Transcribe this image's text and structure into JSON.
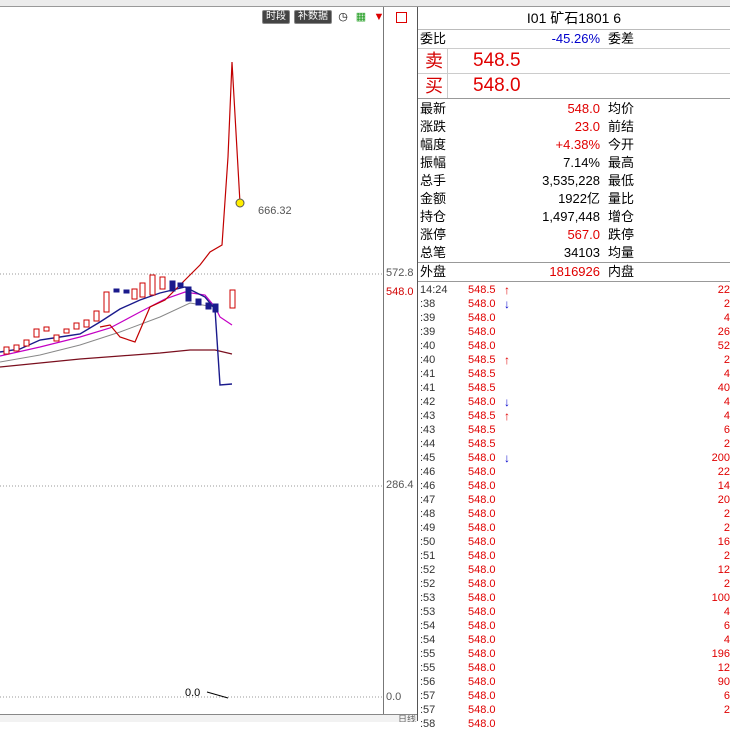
{
  "toolbar": {
    "btn_time": "时段",
    "btn_fill": "补数据",
    "icon_clock": "clock-icon",
    "icon_money": "money-icon",
    "icon_arrow": "down-arrow-icon",
    "icon_panel": "panel-icon"
  },
  "chart": {
    "axis_top": "572.8",
    "axis_current": "548.0",
    "axis_mid": "286.4",
    "axis_zero": "0.0",
    "peak_value": "666.32",
    "vol_label": "0.0",
    "bottom_tab": "日线"
  },
  "quote": {
    "title": "I01  矿石1801  6",
    "weibi_label": "委比",
    "weibi_value": "-45.26%",
    "weicha_label": "委差",
    "sell_label": "卖",
    "sell_price": "548.5",
    "buy_label": "买",
    "buy_price": "548.0",
    "rows": [
      {
        "k": "最新",
        "v": "548.0",
        "k2": "均价",
        "red": true
      },
      {
        "k": "涨跌",
        "v": "23.0",
        "k2": "前结",
        "red": true
      },
      {
        "k": "幅度",
        "v": "+4.38%",
        "k2": "今开",
        "red": true
      },
      {
        "k": "振幅",
        "v": "7.14%",
        "k2": "最高",
        "red": false
      },
      {
        "k": "总手",
        "v": "3,535,228",
        "k2": "最低",
        "red": false
      },
      {
        "k": "金额",
        "v": "1922亿",
        "k2": "量比",
        "red": false
      },
      {
        "k": "持仓",
        "v": "1,497,448",
        "k2": "增仓",
        "red": false
      },
      {
        "k": "涨停",
        "v": "567.0",
        "k2": "跌停",
        "red": true
      },
      {
        "k": "总笔",
        "v": "34103",
        "k2": "均量",
        "red": false
      }
    ],
    "waipan_label": "外盘",
    "waipan_value": "1816926",
    "neipan_label": "内盘"
  },
  "ticks": [
    {
      "t": "14:24",
      "p": "548.5",
      "a": "↑",
      "q": "22"
    },
    {
      "t": ":38",
      "p": "548.0",
      "a": "↓",
      "q": "2"
    },
    {
      "t": ":39",
      "p": "548.0",
      "a": "",
      "q": "4"
    },
    {
      "t": ":39",
      "p": "548.0",
      "a": "",
      "q": "26"
    },
    {
      "t": ":40",
      "p": "548.0",
      "a": "",
      "q": "52"
    },
    {
      "t": ":40",
      "p": "548.5",
      "a": "↑",
      "q": "2"
    },
    {
      "t": ":41",
      "p": "548.5",
      "a": "",
      "q": "4"
    },
    {
      "t": ":41",
      "p": "548.5",
      "a": "",
      "q": "40"
    },
    {
      "t": ":42",
      "p": "548.0",
      "a": "↓",
      "q": "4"
    },
    {
      "t": ":43",
      "p": "548.5",
      "a": "↑",
      "q": "4"
    },
    {
      "t": ":43",
      "p": "548.5",
      "a": "",
      "q": "6"
    },
    {
      "t": ":44",
      "p": "548.5",
      "a": "",
      "q": "2"
    },
    {
      "t": ":45",
      "p": "548.0",
      "a": "↓",
      "q": "200"
    },
    {
      "t": ":46",
      "p": "548.0",
      "a": "",
      "q": "22"
    },
    {
      "t": ":46",
      "p": "548.0",
      "a": "",
      "q": "14"
    },
    {
      "t": ":47",
      "p": "548.0",
      "a": "",
      "q": "20"
    },
    {
      "t": ":48",
      "p": "548.0",
      "a": "",
      "q": "2"
    },
    {
      "t": ":49",
      "p": "548.0",
      "a": "",
      "q": "2"
    },
    {
      "t": ":50",
      "p": "548.0",
      "a": "",
      "q": "16"
    },
    {
      "t": ":51",
      "p": "548.0",
      "a": "",
      "q": "2"
    },
    {
      "t": ":52",
      "p": "548.0",
      "a": "",
      "q": "12"
    },
    {
      "t": ":52",
      "p": "548.0",
      "a": "",
      "q": "2"
    },
    {
      "t": ":53",
      "p": "548.0",
      "a": "",
      "q": "100"
    },
    {
      "t": ":53",
      "p": "548.0",
      "a": "",
      "q": "4"
    },
    {
      "t": ":54",
      "p": "548.0",
      "a": "",
      "q": "6"
    },
    {
      "t": ":54",
      "p": "548.0",
      "a": "",
      "q": "4"
    },
    {
      "t": ":55",
      "p": "548.0",
      "a": "",
      "q": "196"
    },
    {
      "t": ":55",
      "p": "548.0",
      "a": "",
      "q": "12"
    },
    {
      "t": ":56",
      "p": "548.0",
      "a": "",
      "q": "90"
    },
    {
      "t": ":57",
      "p": "548.0",
      "a": "",
      "q": "6"
    },
    {
      "t": ":57",
      "p": "548.0",
      "a": "",
      "q": "2"
    },
    {
      "t": ":58",
      "p": "548.0",
      "a": "",
      "q": ""
    }
  ]
}
